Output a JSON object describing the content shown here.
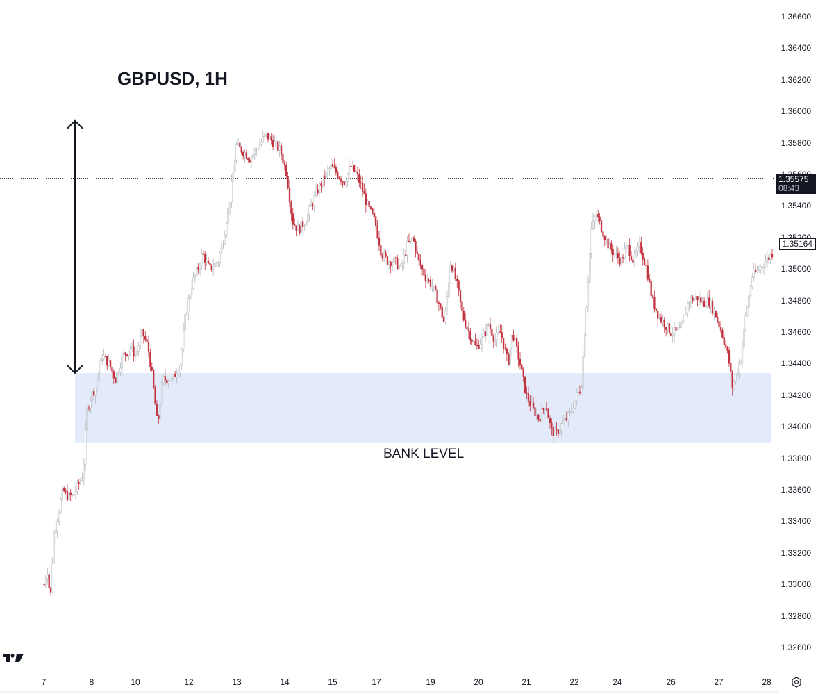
{
  "title": "GBPUSD, 1H",
  "zone_label": "BANK LEVEL",
  "last_price": {
    "value": "1.35575",
    "countdown": "08:43"
  },
  "marked_price": "1.35164",
  "icons": {
    "logo": "tradingview-logo-icon",
    "settings": "settings-gear-icon"
  },
  "colors": {
    "up": "#b2b5be",
    "down": "#c2313d",
    "zone": "#e3ebfb",
    "text": "#131722"
  },
  "chart_data": {
    "type": "candlestick",
    "title": "GBPUSD, 1H",
    "y_ticks": [
      "1.36600",
      "1.36400",
      "1.36200",
      "1.36000",
      "1.35800",
      "1.35600",
      "1.35400",
      "1.35200",
      "1.35000",
      "1.34800",
      "1.34600",
      "1.34400",
      "1.34200",
      "1.34000",
      "1.33800",
      "1.33600",
      "1.33400",
      "1.33200",
      "1.33000",
      "1.32800",
      "1.32600"
    ],
    "x_ticks": [
      "7",
      "8",
      "10",
      "12",
      "13",
      "14",
      "15",
      "17",
      "19",
      "20",
      "21",
      "22",
      "24",
      "26",
      "27",
      "28"
    ],
    "ylim": [
      1.3251,
      1.3672
    ],
    "zone": {
      "low": 1.339,
      "high": 1.3434,
      "label": "BANK LEVEL"
    },
    "arrow": {
      "from": 1.3594,
      "to": 1.3434
    },
    "current_price": 1.35575,
    "series_path": [
      [
        7,
        1.33
      ],
      [
        7.5,
        1.331
      ],
      [
        8,
        1.329
      ],
      [
        8.5,
        1.333
      ],
      [
        9.5,
        1.335
      ],
      [
        10,
        1.336
      ],
      [
        10.6,
        1.3356
      ],
      [
        11.6,
        1.3356
      ],
      [
        13.2,
        1.337
      ],
      [
        13.8,
        1.341
      ],
      [
        14.5,
        1.342
      ],
      [
        15.2,
        1.3425
      ],
      [
        16.2,
        1.3445
      ],
      [
        17.3,
        1.344
      ],
      [
        18.3,
        1.343
      ],
      [
        19.5,
        1.3445
      ],
      [
        20.7,
        1.345
      ],
      [
        21.5,
        1.3445
      ],
      [
        22.6,
        1.346
      ],
      [
        23.5,
        1.345
      ],
      [
        24.2,
        1.343
      ],
      [
        25,
        1.34
      ],
      [
        25.8,
        1.343
      ],
      [
        26.6,
        1.343
      ],
      [
        27.4,
        1.343
      ],
      [
        28.6,
        1.344
      ],
      [
        29.4,
        1.347
      ],
      [
        30.4,
        1.349
      ],
      [
        31.4,
        1.35
      ],
      [
        32.1,
        1.351
      ],
      [
        33.2,
        1.35
      ],
      [
        34.6,
        1.3505
      ],
      [
        35.5,
        1.352
      ],
      [
        36.5,
        1.3545
      ],
      [
        37.5,
        1.3578
      ],
      [
        38.5,
        1.3575
      ],
      [
        39.7,
        1.357
      ],
      [
        41,
        1.3578
      ],
      [
        42.2,
        1.3585
      ],
      [
        43.4,
        1.358
      ],
      [
        44.5,
        1.3575
      ],
      [
        45.5,
        1.356
      ],
      [
        46.4,
        1.353
      ],
      [
        47.3,
        1.3525
      ],
      [
        48.4,
        1.353
      ],
      [
        49.4,
        1.354
      ],
      [
        50.4,
        1.355
      ],
      [
        51.4,
        1.3558
      ],
      [
        52.5,
        1.3565
      ],
      [
        53.6,
        1.356
      ],
      [
        54.6,
        1.3555
      ],
      [
        55.6,
        1.3565
      ],
      [
        56.6,
        1.356
      ],
      [
        57.5,
        1.355
      ],
      [
        58.3,
        1.354
      ],
      [
        59.5,
        1.353
      ],
      [
        60.5,
        1.351
      ],
      [
        61.5,
        1.3505
      ],
      [
        62.6,
        1.3505
      ],
      [
        63.6,
        1.35
      ],
      [
        64.6,
        1.3515
      ],
      [
        65.5,
        1.352
      ],
      [
        66.4,
        1.3505
      ],
      [
        67.5,
        1.3495
      ],
      [
        68.5,
        1.349
      ],
      [
        69.5,
        1.348
      ],
      [
        70.5,
        1.3465
      ],
      [
        71.5,
        1.3505
      ],
      [
        72.5,
        1.349
      ],
      [
        73.4,
        1.347
      ],
      [
        74.4,
        1.346
      ],
      [
        75.5,
        1.345
      ],
      [
        76.4,
        1.3455
      ],
      [
        77.5,
        1.3465
      ],
      [
        78.5,
        1.3455
      ],
      [
        79.4,
        1.346
      ],
      [
        80.6,
        1.344
      ],
      [
        81.3,
        1.346
      ],
      [
        82.5,
        1.344
      ],
      [
        83.5,
        1.342
      ],
      [
        84.4,
        1.3412
      ],
      [
        85.5,
        1.3405
      ],
      [
        86.6,
        1.3415
      ],
      [
        87.4,
        1.3398
      ],
      [
        88.2,
        1.3395
      ],
      [
        89.2,
        1.3402
      ],
      [
        90.4,
        1.3408
      ],
      [
        91.5,
        1.342
      ],
      [
        92.2,
        1.3425
      ],
      [
        93.8,
        1.3525
      ],
      [
        94.6,
        1.3535
      ],
      [
        95.5,
        1.3525
      ],
      [
        96.5,
        1.3515
      ],
      [
        97.4,
        1.351
      ],
      [
        98.5,
        1.3505
      ],
      [
        99.5,
        1.3515
      ],
      [
        100.5,
        1.3505
      ],
      [
        101.5,
        1.3515
      ],
      [
        102.6,
        1.35
      ],
      [
        103.5,
        1.348
      ],
      [
        104.5,
        1.347
      ],
      [
        105.5,
        1.3465
      ],
      [
        106.4,
        1.346
      ],
      [
        107.6,
        1.346
      ],
      [
        108.3,
        1.3465
      ],
      [
        109.2,
        1.348
      ],
      [
        110.6,
        1.3482
      ],
      [
        111.6,
        1.3478
      ],
      [
        112.4,
        1.348
      ],
      [
        113.6,
        1.347
      ],
      [
        114.5,
        1.346
      ],
      [
        115.5,
        1.3445
      ],
      [
        116.2,
        1.3425
      ],
      [
        117.6,
        1.3445
      ],
      [
        118.3,
        1.347
      ],
      [
        119.3,
        1.3495
      ],
      [
        120.4,
        1.35
      ],
      [
        121.5,
        1.3505
      ],
      [
        122.5,
        1.351
      ]
    ]
  }
}
